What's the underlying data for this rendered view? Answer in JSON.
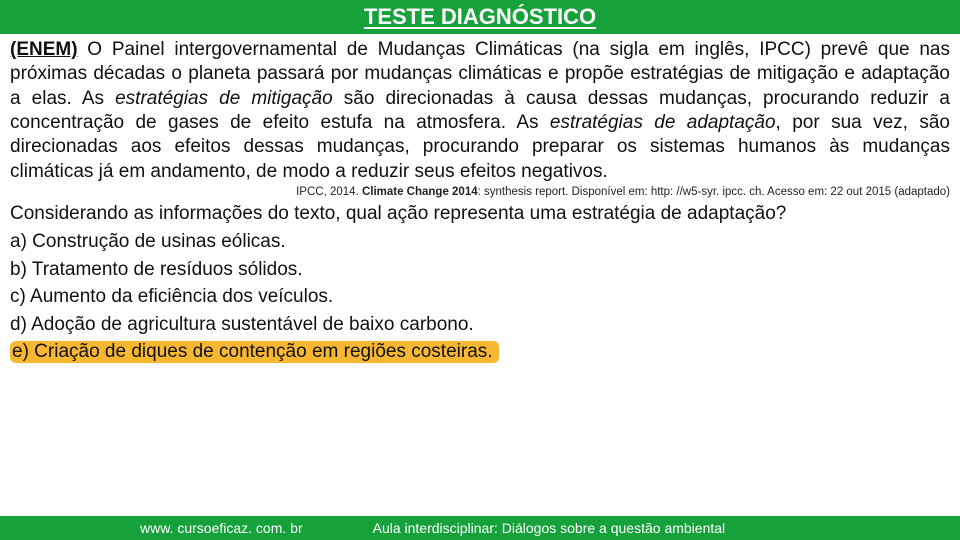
{
  "colors": {
    "green": "#16a13b",
    "highlight": "#f7b731",
    "text": "#111111",
    "white": "#ffffff"
  },
  "header": {
    "title": "TESTE DIAGNÓSTICO"
  },
  "passage": {
    "prefix": "(ENEM)",
    "part1": " O Painel intergovernamental de Mudanças Climáticas (na sigla em inglês, IPCC) prevê que nas próximas décadas o planeta passará por mudanças climáticas e propõe estratégias de mitigação e adaptação a elas. As ",
    "em1": "estratégias de mitigação",
    "part2": " são direcionadas à causa dessas mudanças, procurando reduzir a concentração de gases de efeito estufa na atmosfera. As ",
    "em2": "estratégias de adaptação",
    "part3": ", por sua vez, são direcionadas aos efeitos dessas mudanças, procurando preparar os sistemas humanos às mudanças climáticas já em andamento, de modo a reduzir seus efeitos negativos."
  },
  "citation": {
    "pre": "IPCC, 2014. ",
    "bold": "Climate Change 2014",
    "post": ": synthesis report. Disponível em: http: //w5-syr. ipcc. ch. Acesso em: 22 out 2015 (adaptado)"
  },
  "question": {
    "text": "Considerando as informações do texto, qual ação representa uma estratégia de adaptação?"
  },
  "options": {
    "a": "a) Construção de usinas eólicas.",
    "b": "b) Tratamento de resíduos sólidos.",
    "c": "c) Aumento da eficiência dos veículos.",
    "d": "d) Adoção de agricultura sustentável de baixo carbono.",
    "e": "e) Criação de diques de contenção em regiões costeiras."
  },
  "footer": {
    "url": "www. cursoeficaz. com. br",
    "course": "Aula interdisciplinar: Diálogos sobre a questão ambiental"
  }
}
